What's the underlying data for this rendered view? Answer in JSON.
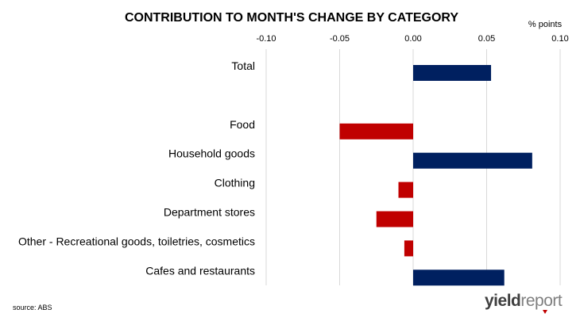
{
  "chart_data": {
    "type": "bar",
    "orientation": "horizontal",
    "title": "CONTRIBUTION TO MONTH'S CHANGE BY CATEGORY",
    "unit_label": "% points",
    "xlim": [
      -0.1,
      0.1
    ],
    "ticks": [
      -0.1,
      -0.05,
      0.0,
      0.05,
      0.1
    ],
    "tick_labels": [
      "-0.10",
      "-0.05",
      "0.00",
      "0.05",
      "0.10"
    ],
    "axis_position": "top",
    "grid": true,
    "categories": [
      "Total",
      "",
      "Food",
      "Household goods",
      "Clothing",
      "Department stores",
      "Other - Recreational goods, toiletries, cosmetics",
      "Cafes and restaurants"
    ],
    "values": [
      0.053,
      null,
      -0.05,
      0.081,
      -0.01,
      -0.025,
      -0.006,
      0.062
    ],
    "colors": {
      "positive": "#002060",
      "negative": "#C00000",
      "grid": "#D9D9D9"
    }
  },
  "source": "source: ABS",
  "logo": {
    "text": "yieldreport",
    "accent_color": "#C00000"
  }
}
